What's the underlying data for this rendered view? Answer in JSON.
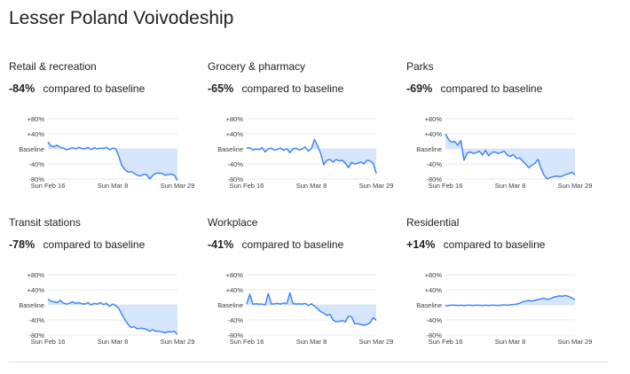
{
  "title": "Lesser Poland Voivodeship",
  "colors": {
    "line": "#4285f4",
    "fill": "#d2e3fc",
    "grid": "#e8eaed",
    "text": "#202124",
    "tick": "#3c4043"
  },
  "chart_data": [
    {
      "type": "line",
      "title": "Retail & recreation",
      "headline_value": "-84%",
      "headline_text": "compared to baseline",
      "ylim": [
        -80,
        80
      ],
      "yticks": [
        "+80%",
        "+40%",
        "Baseline",
        "-40%",
        "-80%"
      ],
      "xticks": [
        "Sun Feb 16",
        "Sun Mar 8",
        "Sun Mar 29"
      ],
      "x": [
        "Feb 16",
        "Feb 17",
        "Feb 18",
        "Feb 19",
        "Feb 20",
        "Feb 21",
        "Feb 22",
        "Feb 23",
        "Feb 24",
        "Feb 25",
        "Feb 26",
        "Feb 27",
        "Feb 28",
        "Feb 29",
        "Mar 1",
        "Mar 2",
        "Mar 3",
        "Mar 4",
        "Mar 5",
        "Mar 6",
        "Mar 7",
        "Mar 8",
        "Mar 9",
        "Mar 10",
        "Mar 11",
        "Mar 12",
        "Mar 13",
        "Mar 14",
        "Mar 15",
        "Mar 16",
        "Mar 17",
        "Mar 18",
        "Mar 19",
        "Mar 20",
        "Mar 21",
        "Mar 22",
        "Mar 23",
        "Mar 24",
        "Mar 25",
        "Mar 26",
        "Mar 27",
        "Mar 28",
        "Mar 29"
      ],
      "values": [
        18,
        8,
        6,
        10,
        4,
        2,
        -2,
        0,
        3,
        0,
        4,
        1,
        0,
        4,
        -2,
        3,
        0,
        2,
        1,
        4,
        -2,
        2,
        0,
        -20,
        -45,
        -55,
        -62,
        -60,
        -65,
        -70,
        -72,
        -68,
        -68,
        -80,
        -70,
        -65,
        -64,
        -65,
        -70,
        -68,
        -67,
        -70,
        -84
      ]
    },
    {
      "type": "line",
      "title": "Grocery & pharmacy",
      "headline_value": "-65%",
      "headline_text": "compared to baseline",
      "ylim": [
        -80,
        80
      ],
      "yticks": [
        "+80%",
        "+40%",
        "Baseline",
        "-40%",
        "-80%"
      ],
      "xticks": [
        "Sun Feb 16",
        "Sun Mar 8",
        "Sun Mar 29"
      ],
      "x": [
        "Feb 16",
        "Feb 17",
        "Feb 18",
        "Feb 19",
        "Feb 20",
        "Feb 21",
        "Feb 22",
        "Feb 23",
        "Feb 24",
        "Feb 25",
        "Feb 26",
        "Feb 27",
        "Feb 28",
        "Feb 29",
        "Mar 1",
        "Mar 2",
        "Mar 3",
        "Mar 4",
        "Mar 5",
        "Mar 6",
        "Mar 7",
        "Mar 8",
        "Mar 9",
        "Mar 10",
        "Mar 11",
        "Mar 12",
        "Mar 13",
        "Mar 14",
        "Mar 15",
        "Mar 16",
        "Mar 17",
        "Mar 18",
        "Mar 19",
        "Mar 20",
        "Mar 21",
        "Mar 22",
        "Mar 23",
        "Mar 24",
        "Mar 25",
        "Mar 26",
        "Mar 27",
        "Mar 28",
        "Mar 29"
      ],
      "values": [
        2,
        3,
        -3,
        0,
        -2,
        3,
        -8,
        0,
        2,
        -3,
        -1,
        2,
        -4,
        1,
        -10,
        0,
        2,
        -3,
        0,
        5,
        -6,
        1,
        25,
        8,
        -12,
        -42,
        -30,
        -28,
        -35,
        -28,
        -32,
        -30,
        -38,
        -50,
        -36,
        -40,
        -38,
        -35,
        -40,
        -30,
        -32,
        -38,
        -65
      ]
    },
    {
      "type": "line",
      "title": "Parks",
      "headline_value": "-69%",
      "headline_text": "compared to baseline",
      "ylim": [
        -80,
        80
      ],
      "yticks": [
        "+80%",
        "+40%",
        "Baseline",
        "-40%",
        "-80%"
      ],
      "xticks": [
        "Sun Feb 16",
        "Sun Mar 8",
        "Sun Mar 29"
      ],
      "x": [
        "Feb 16",
        "Feb 17",
        "Feb 18",
        "Feb 19",
        "Feb 20",
        "Feb 21",
        "Feb 22",
        "Feb 23",
        "Feb 24",
        "Feb 25",
        "Feb 26",
        "Feb 27",
        "Feb 28",
        "Feb 29",
        "Mar 1",
        "Mar 2",
        "Mar 3",
        "Mar 4",
        "Mar 5",
        "Mar 6",
        "Mar 7",
        "Mar 8",
        "Mar 9",
        "Mar 10",
        "Mar 11",
        "Mar 12",
        "Mar 13",
        "Mar 14",
        "Mar 15",
        "Mar 16",
        "Mar 17",
        "Mar 18",
        "Mar 19",
        "Mar 20",
        "Mar 21",
        "Mar 22",
        "Mar 23",
        "Mar 24",
        "Mar 25",
        "Mar 26",
        "Mar 27",
        "Mar 28",
        "Mar 29"
      ],
      "values": [
        40,
        25,
        18,
        20,
        10,
        22,
        -30,
        -12,
        -8,
        -12,
        -10,
        -6,
        -16,
        -4,
        -18,
        -10,
        -8,
        -12,
        -10,
        -6,
        -16,
        -20,
        -15,
        -25,
        -24,
        -32,
        -40,
        -50,
        -44,
        -38,
        -28,
        -52,
        -70,
        -80,
        -76,
        -74,
        -72,
        -74,
        -72,
        -68,
        -66,
        -62,
        -69
      ]
    },
    {
      "type": "line",
      "title": "Transit stations",
      "headline_value": "-78%",
      "headline_text": "compared to baseline",
      "ylim": [
        -80,
        80
      ],
      "yticks": [
        "+80%",
        "+40%",
        "Baseline",
        "-40%",
        "-80%"
      ],
      "xticks": [
        "Sun Feb 16",
        "Sun Mar 8",
        "Sun Mar 29"
      ],
      "x": [
        "Feb 16",
        "Feb 17",
        "Feb 18",
        "Feb 19",
        "Feb 20",
        "Feb 21",
        "Feb 22",
        "Feb 23",
        "Feb 24",
        "Feb 25",
        "Feb 26",
        "Feb 27",
        "Feb 28",
        "Feb 29",
        "Mar 1",
        "Mar 2",
        "Mar 3",
        "Mar 4",
        "Mar 5",
        "Mar 6",
        "Mar 7",
        "Mar 8",
        "Mar 9",
        "Mar 10",
        "Mar 11",
        "Mar 12",
        "Mar 13",
        "Mar 14",
        "Mar 15",
        "Mar 16",
        "Mar 17",
        "Mar 18",
        "Mar 19",
        "Mar 20",
        "Mar 21",
        "Mar 22",
        "Mar 23",
        "Mar 24",
        "Mar 25",
        "Mar 26",
        "Mar 27",
        "Mar 28",
        "Mar 29"
      ],
      "values": [
        15,
        10,
        8,
        6,
        12,
        5,
        2,
        4,
        8,
        4,
        6,
        3,
        2,
        6,
        0,
        4,
        2,
        6,
        1,
        4,
        -4,
        2,
        -2,
        -10,
        -25,
        -40,
        -52,
        -60,
        -58,
        -64,
        -62,
        -63,
        -65,
        -70,
        -66,
        -70,
        -70,
        -72,
        -74,
        -71,
        -72,
        -70,
        -78
      ]
    },
    {
      "type": "line",
      "title": "Workplace",
      "headline_value": "-41%",
      "headline_text": "compared to baseline",
      "ylim": [
        -80,
        80
      ],
      "yticks": [
        "+80%",
        "+40%",
        "Baseline",
        "-40%",
        "-80%"
      ],
      "xticks": [
        "Sun Feb 16",
        "Sun Mar 8",
        "Sun Mar 29"
      ],
      "x": [
        "Feb 16",
        "Feb 17",
        "Feb 18",
        "Feb 19",
        "Feb 20",
        "Feb 21",
        "Feb 22",
        "Feb 23",
        "Feb 24",
        "Feb 25",
        "Feb 26",
        "Feb 27",
        "Feb 28",
        "Feb 29",
        "Mar 1",
        "Mar 2",
        "Mar 3",
        "Mar 4",
        "Mar 5",
        "Mar 6",
        "Mar 7",
        "Mar 8",
        "Mar 9",
        "Mar 10",
        "Mar 11",
        "Mar 12",
        "Mar 13",
        "Mar 14",
        "Mar 15",
        "Mar 16",
        "Mar 17",
        "Mar 18",
        "Mar 19",
        "Mar 20",
        "Mar 21",
        "Mar 22",
        "Mar 23",
        "Mar 24",
        "Mar 25",
        "Mar 26",
        "Mar 27",
        "Mar 28",
        "Mar 29"
      ],
      "values": [
        2,
        28,
        2,
        3,
        2,
        2,
        0,
        30,
        2,
        3,
        4,
        2,
        5,
        3,
        32,
        4,
        2,
        3,
        2,
        4,
        -2,
        3,
        -4,
        -10,
        -18,
        -22,
        -28,
        -25,
        -40,
        -45,
        -44,
        -42,
        -45,
        -30,
        -32,
        -50,
        -50,
        -52,
        -54,
        -52,
        -48,
        -34,
        -41
      ]
    },
    {
      "type": "line",
      "title": "Residential",
      "headline_value": "+14%",
      "headline_text": "compared to baseline",
      "ylim": [
        -80,
        80
      ],
      "yticks": [
        "+80%",
        "+40%",
        "Baseline",
        "-40%",
        "-80%"
      ],
      "xticks": [
        "Sun Feb 16",
        "Sun Mar 8",
        "Sun Mar 29"
      ],
      "x": [
        "Feb 16",
        "Feb 17",
        "Feb 18",
        "Feb 19",
        "Feb 20",
        "Feb 21",
        "Feb 22",
        "Feb 23",
        "Feb 24",
        "Feb 25",
        "Feb 26",
        "Feb 27",
        "Feb 28",
        "Feb 29",
        "Mar 1",
        "Mar 2",
        "Mar 3",
        "Mar 4",
        "Mar 5",
        "Mar 6",
        "Mar 7",
        "Mar 8",
        "Mar 9",
        "Mar 10",
        "Mar 11",
        "Mar 12",
        "Mar 13",
        "Mar 14",
        "Mar 15",
        "Mar 16",
        "Mar 17",
        "Mar 18",
        "Mar 19",
        "Mar 20",
        "Mar 21",
        "Mar 22",
        "Mar 23",
        "Mar 24",
        "Mar 25",
        "Mar 26",
        "Mar 27",
        "Mar 28",
        "Mar 29"
      ],
      "values": [
        -3,
        -2,
        -1,
        -1,
        -2,
        -1,
        -2,
        -1,
        -1,
        -2,
        -1,
        -1,
        -2,
        -1,
        -2,
        -1,
        -1,
        -2,
        -1,
        0,
        -1,
        0,
        1,
        2,
        4,
        8,
        10,
        12,
        10,
        12,
        14,
        16,
        18,
        14,
        16,
        20,
        22,
        24,
        23,
        25,
        22,
        18,
        14
      ]
    }
  ]
}
